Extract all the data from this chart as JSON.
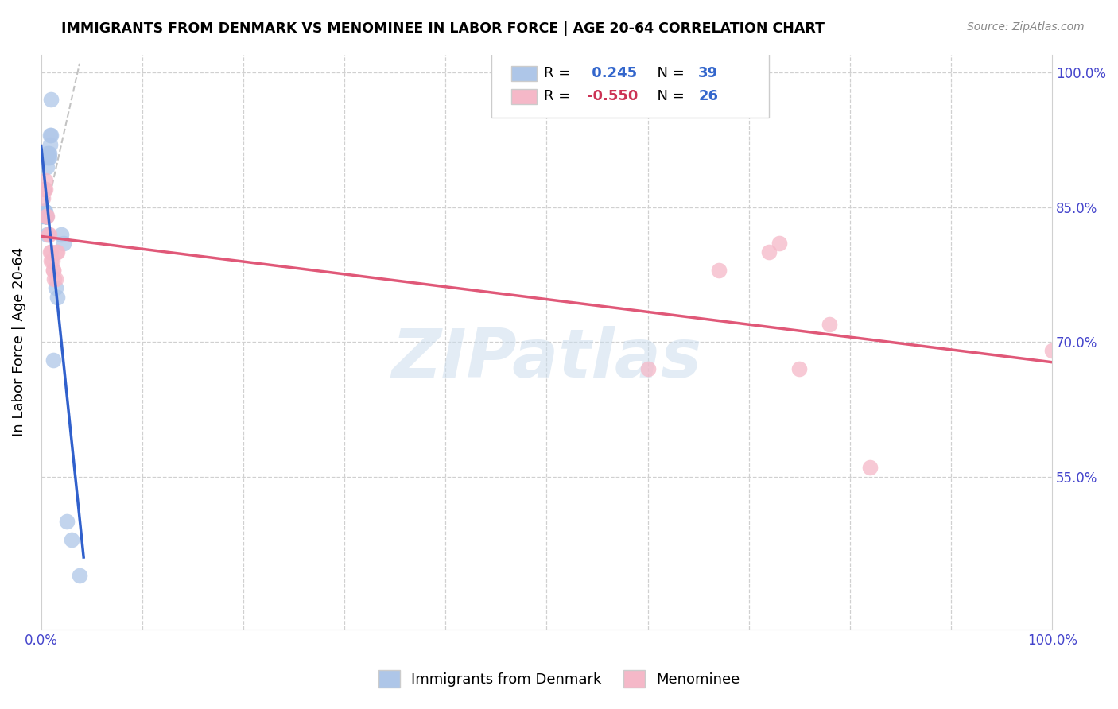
{
  "title": "IMMIGRANTS FROM DENMARK VS MENOMINEE IN LABOR FORCE | AGE 20-64 CORRELATION CHART",
  "source": "Source: ZipAtlas.com",
  "ylabel": "In Labor Force | Age 20-64",
  "xlim": [
    0.0,
    1.0
  ],
  "ylim": [
    0.38,
    1.02
  ],
  "denmark_color": "#aec6e8",
  "menominee_color": "#f5b8c8",
  "denmark_line_color": "#3060cc",
  "menominee_line_color": "#e05878",
  "legend_R1": "0.245",
  "legend_N1": "39",
  "legend_R2": "-0.550",
  "legend_N2": "26",
  "watermark": "ZIPatlas",
  "right_yticks": [
    1.0,
    0.85,
    0.7,
    0.55
  ],
  "right_ytick_labels": [
    "100.0%",
    "85.0%",
    "70.0%",
    "55.0%"
  ],
  "denmark_x": [
    0.001,
    0.001,
    0.002,
    0.002,
    0.003,
    0.003,
    0.003,
    0.003,
    0.003,
    0.004,
    0.004,
    0.004,
    0.004,
    0.004,
    0.005,
    0.005,
    0.005,
    0.005,
    0.005,
    0.006,
    0.006,
    0.006,
    0.006,
    0.007,
    0.007,
    0.008,
    0.008,
    0.009,
    0.009,
    0.01,
    0.01,
    0.012,
    0.014,
    0.016,
    0.02,
    0.022,
    0.025,
    0.03,
    0.038
  ],
  "denmark_y": [
    0.845,
    0.84,
    0.845,
    0.845,
    0.845,
    0.845,
    0.845,
    0.845,
    0.845,
    0.845,
    0.84,
    0.84,
    0.84,
    0.84,
    0.84,
    0.84,
    0.84,
    0.84,
    0.84,
    0.91,
    0.905,
    0.895,
    0.82,
    0.91,
    0.905,
    0.91,
    0.905,
    0.92,
    0.93,
    0.93,
    0.97,
    0.68,
    0.76,
    0.75,
    0.82,
    0.81,
    0.5,
    0.48,
    0.44
  ],
  "menominee_x": [
    0.002,
    0.003,
    0.004,
    0.004,
    0.005,
    0.006,
    0.007,
    0.008,
    0.009,
    0.01,
    0.01,
    0.011,
    0.012,
    0.012,
    0.013,
    0.014,
    0.015,
    0.016,
    0.6,
    0.67,
    0.72,
    0.73,
    0.75,
    0.78,
    0.82,
    1.0
  ],
  "menominee_y": [
    0.86,
    0.87,
    0.88,
    0.87,
    0.84,
    0.84,
    0.82,
    0.82,
    0.8,
    0.8,
    0.79,
    0.79,
    0.78,
    0.78,
    0.77,
    0.77,
    0.8,
    0.8,
    0.67,
    0.78,
    0.8,
    0.81,
    0.67,
    0.72,
    0.56,
    0.69
  ],
  "dashed_line": [
    [
      0.005,
      0.038
    ],
    [
      0.845,
      1.01
    ]
  ]
}
